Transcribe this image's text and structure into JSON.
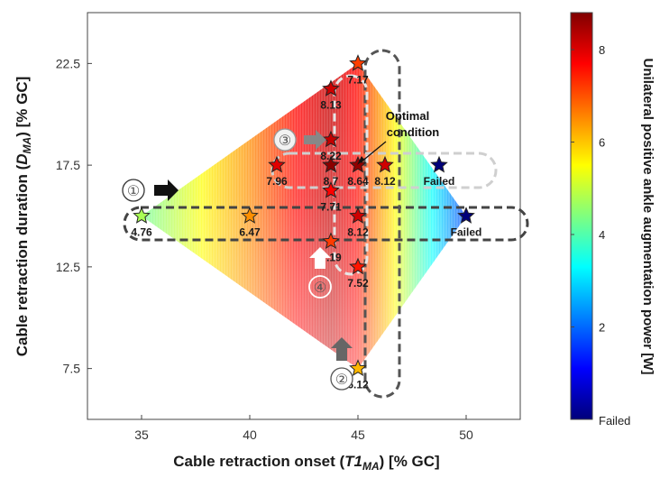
{
  "chart_data": {
    "type": "scatter",
    "xlabel_main": "Cable retraction onset (",
    "xlabel_var": "T1",
    "xlabel_sub": "MA",
    "xlabel_unit": ") [% GC]",
    "ylabel_main": "Cable retraction duration (",
    "ylabel_var": "D",
    "ylabel_sub": "MA",
    "ylabel_unit": ") [% GC]",
    "xlim": [
      32.5,
      52.5
    ],
    "ylim": [
      5,
      25
    ],
    "xticks": [
      "35",
      "40",
      "45",
      "50"
    ],
    "yticks": [
      "7.5",
      "12.5",
      "17.5",
      "22.5"
    ],
    "colorbar": {
      "label": "Unilateral positive ankle augmentation power [W]",
      "range": [
        0,
        8.8
      ],
      "ticks": [
        "2",
        "4",
        "6",
        "8"
      ],
      "failed_label": "Failed",
      "colors": [
        "#00007a",
        "#0000ff",
        "#0080ff",
        "#00ffff",
        "#7fff7f",
        "#ffff00",
        "#ff8000",
        "#ff0000",
        "#800000"
      ]
    },
    "points": [
      {
        "x": 35,
        "y": 15,
        "value": 4.76,
        "label": "4.76"
      },
      {
        "x": 40,
        "y": 15,
        "value": 6.47,
        "label": "6.47"
      },
      {
        "x": 45,
        "y": 15,
        "value": 8.12,
        "label": "8.12"
      },
      {
        "x": 50,
        "y": 15,
        "value": 0,
        "label": "Failed"
      },
      {
        "x": 43.75,
        "y": 17.5,
        "value": 8.7,
        "label": "8.7"
      },
      {
        "x": 41.25,
        "y": 17.5,
        "value": 7.96,
        "label": "7.96"
      },
      {
        "x": 45,
        "y": 17.5,
        "value": 8.64,
        "label": "8.64"
      },
      {
        "x": 46.25,
        "y": 17.5,
        "value": 8.12,
        "label": "8.12"
      },
      {
        "x": 48.75,
        "y": 17.5,
        "value": 0,
        "label": "Failed"
      },
      {
        "x": 43.75,
        "y": 21.25,
        "value": 8.13,
        "label": "8.13"
      },
      {
        "x": 43.75,
        "y": 18.75,
        "value": 8.22,
        "label": "8.22"
      },
      {
        "x": 43.75,
        "y": 16.25,
        "value": 7.71,
        "label": "7.71"
      },
      {
        "x": 43.75,
        "y": 13.75,
        "value": 7.19,
        "label": "7.19"
      },
      {
        "x": 45,
        "y": 22.5,
        "value": 7.17,
        "label": "7.17"
      },
      {
        "x": 45,
        "y": 12.5,
        "value": 7.52,
        "label": "7.52"
      },
      {
        "x": 45,
        "y": 7.5,
        "value": 6.12,
        "label": "6.12"
      }
    ],
    "annotations": {
      "optimal": [
        "Optimal",
        "condition"
      ],
      "markers": [
        "①",
        "②",
        "③",
        "④"
      ]
    }
  }
}
